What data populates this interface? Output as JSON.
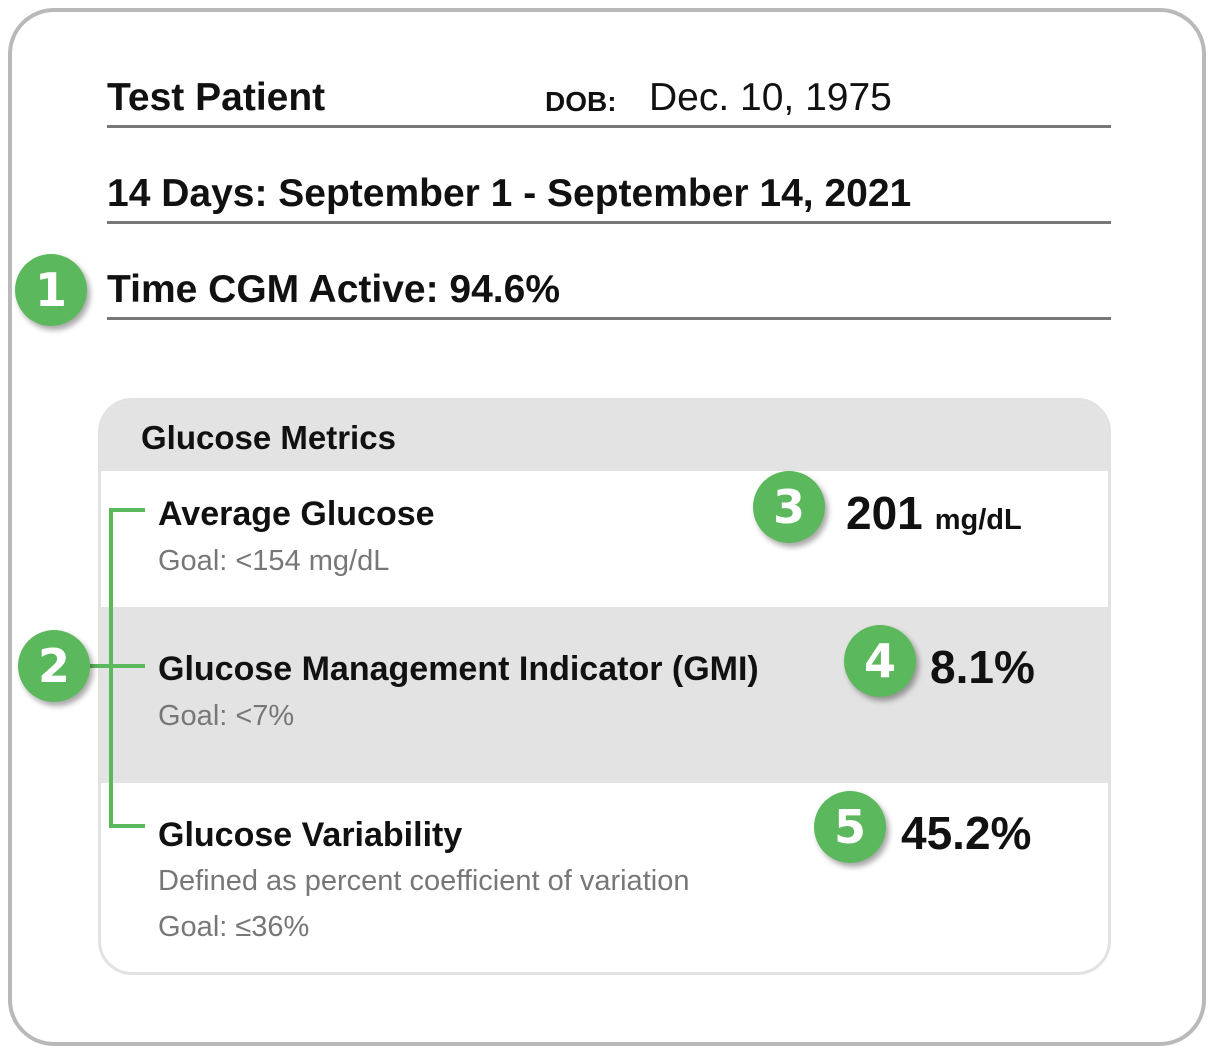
{
  "patient": {
    "name": "Test Patient",
    "dob_label": "DOB:",
    "dob_value": "Dec. 10, 1975"
  },
  "period": "14 Days: September 1 - September 14, 2021",
  "cgm_active": "Time CGM Active: 94.6%",
  "badges": [
    "1",
    "2",
    "3",
    "4",
    "5"
  ],
  "glucose_metrics": {
    "title": "Glucose Metrics",
    "average": {
      "name": "Average Glucose",
      "goal": "Goal: <154 mg/dL",
      "value": "201",
      "unit": "mg/dL"
    },
    "gmi": {
      "name": "Glucose Management Indicator (GMI)",
      "goal": "Goal: <7%",
      "value": "8.1%"
    },
    "variability": {
      "name": "Glucose Variability",
      "description": "Defined as percent coefficient of variation",
      "goal": "Goal: ≤36%",
      "value": "45.2%"
    }
  },
  "colors": {
    "badge_green": "#5cb85c",
    "band_gray": "#e3e3e3",
    "frame_border": "#b9b9b9"
  }
}
